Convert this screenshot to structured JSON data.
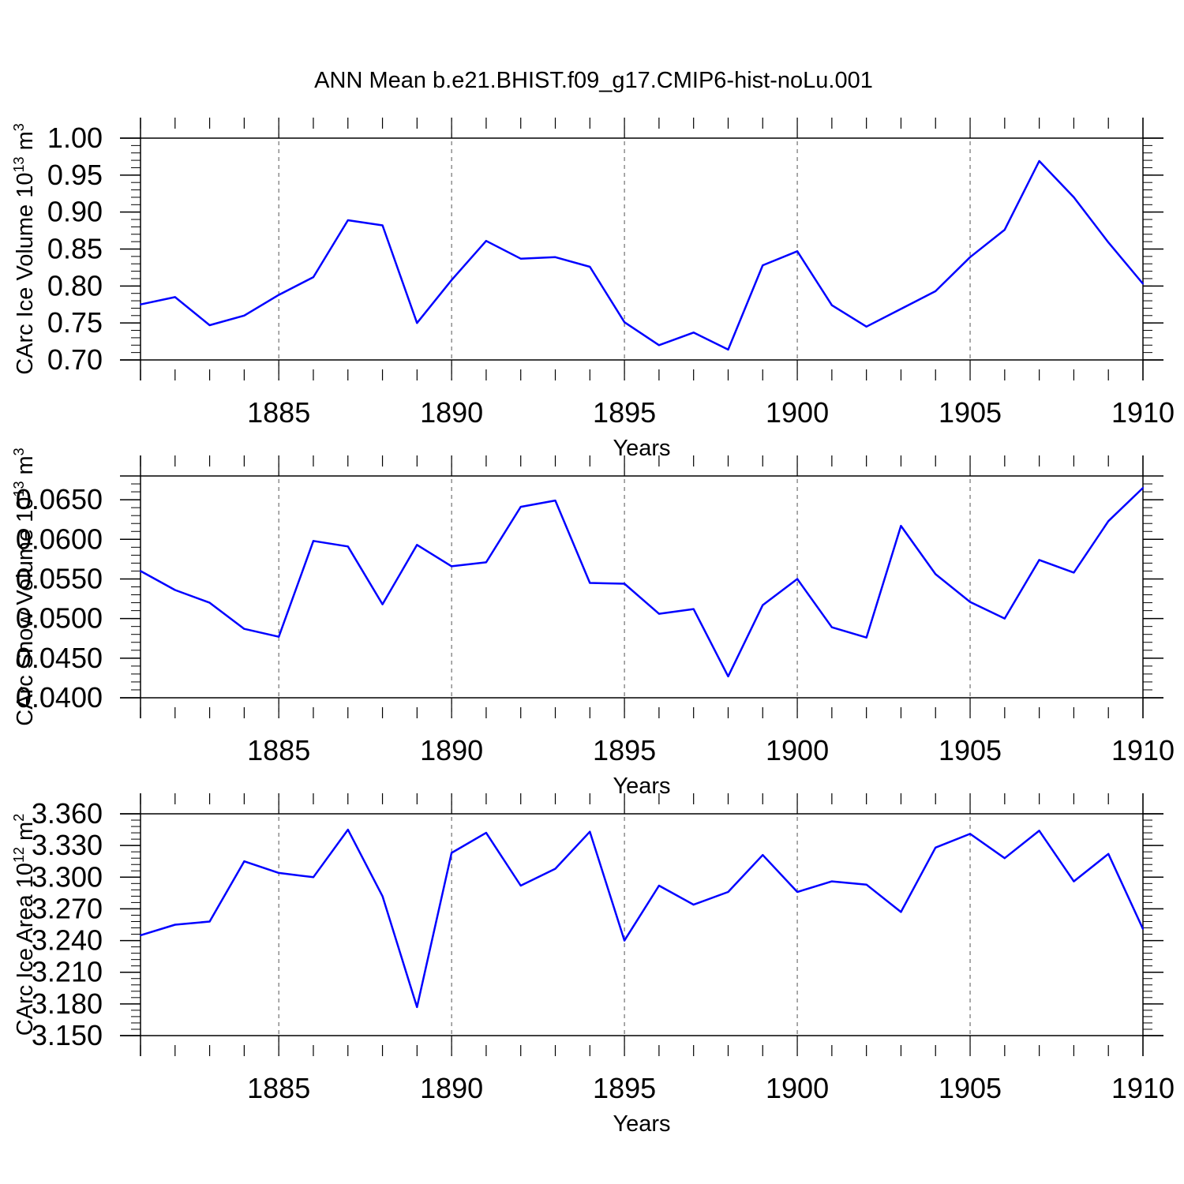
{
  "title": "ANN Mean b.e21.BHIST.f09_g17.CMIP6-hist-noLu.001",
  "line_color": "#0000ff",
  "chart_data": [
    {
      "type": "line",
      "name": "ice-volume",
      "ylabel": "CArc Ice Volume",
      "ylabel_base": "10",
      "ylabel_exp": "13",
      "ylabel_unit": "m",
      "ylabel_unit_exp": "3",
      "xlabel": "Years",
      "xlim": [
        1881,
        1910
      ],
      "ylim": [
        0.7,
        1.0
      ],
      "grid": "vertical-dashed",
      "x_ticks": [
        1885,
        1890,
        1895,
        1900,
        1905,
        1910
      ],
      "x_tick_labels": [
        "1885",
        "1890",
        "1895",
        "1900",
        "1905",
        "1910"
      ],
      "y_ticks": [
        0.7,
        0.75,
        0.8,
        0.85,
        0.9,
        0.95,
        1.0
      ],
      "y_tick_labels": [
        "0.70",
        "0.75",
        "0.80",
        "0.85",
        "0.90",
        "0.95",
        "1.00"
      ],
      "y_minor_step": 0.01,
      "x": [
        1881,
        1882,
        1883,
        1884,
        1885,
        1886,
        1887,
        1888,
        1889,
        1890,
        1891,
        1892,
        1893,
        1894,
        1895,
        1896,
        1897,
        1898,
        1899,
        1900,
        1901,
        1902,
        1903,
        1904,
        1905,
        1906,
        1907,
        1908,
        1909,
        1910
      ],
      "values": [
        0.775,
        0.785,
        0.747,
        0.76,
        0.788,
        0.812,
        0.889,
        0.882,
        0.75,
        0.808,
        0.861,
        0.837,
        0.839,
        0.826,
        0.751,
        0.72,
        0.737,
        0.714,
        0.828,
        0.847,
        0.774,
        0.745,
        0.769,
        0.793,
        0.839,
        0.876,
        0.969,
        0.92,
        0.859,
        0.803
      ]
    },
    {
      "type": "line",
      "name": "snow-volume",
      "ylabel": "CArc Snow Volume",
      "ylabel_base": "10",
      "ylabel_exp": "13",
      "ylabel_unit": "m",
      "ylabel_unit_exp": "3",
      "xlabel": "Years",
      "xlim": [
        1881,
        1910
      ],
      "ylim": [
        0.04,
        0.068
      ],
      "grid": "vertical-dashed",
      "x_ticks": [
        1885,
        1890,
        1895,
        1900,
        1905,
        1910
      ],
      "x_tick_labels": [
        "1885",
        "1890",
        "1895",
        "1900",
        "1905",
        "1910"
      ],
      "y_ticks": [
        0.04,
        0.045,
        0.05,
        0.055,
        0.06,
        0.065
      ],
      "y_tick_labels": [
        "0.0400",
        "0.0450",
        "0.0500",
        "0.0550",
        "0.0600",
        "0.0650"
      ],
      "y_minor_step": 0.001,
      "x": [
        1881,
        1882,
        1883,
        1884,
        1885,
        1886,
        1887,
        1888,
        1889,
        1890,
        1891,
        1892,
        1893,
        1894,
        1895,
        1896,
        1897,
        1898,
        1899,
        1900,
        1901,
        1902,
        1903,
        1904,
        1905,
        1906,
        1907,
        1908,
        1909,
        1910
      ],
      "values": [
        0.056,
        0.0536,
        0.052,
        0.0487,
        0.0477,
        0.0598,
        0.0591,
        0.0518,
        0.0593,
        0.0566,
        0.0571,
        0.0641,
        0.0649,
        0.0545,
        0.0544,
        0.0506,
        0.0512,
        0.0427,
        0.0517,
        0.055,
        0.0489,
        0.0476,
        0.0617,
        0.0556,
        0.0521,
        0.05,
        0.0574,
        0.0558,
        0.0623,
        0.0665
      ]
    },
    {
      "type": "line",
      "name": "ice-area",
      "ylabel": "CArc Ice Area",
      "ylabel_base": "10",
      "ylabel_exp": "12",
      "ylabel_unit": "m",
      "ylabel_unit_exp": "2",
      "xlabel": "Years",
      "xlim": [
        1881,
        1910
      ],
      "ylim": [
        3.15,
        3.36
      ],
      "grid": "vertical-dashed",
      "x_ticks": [
        1885,
        1890,
        1895,
        1900,
        1905,
        1910
      ],
      "x_tick_labels": [
        "1885",
        "1890",
        "1895",
        "1900",
        "1905",
        "1910"
      ],
      "y_ticks": [
        3.15,
        3.18,
        3.21,
        3.24,
        3.27,
        3.3,
        3.33,
        3.36
      ],
      "y_tick_labels": [
        "3.150",
        "3.180",
        "3.210",
        "3.240",
        "3.270",
        "3.300",
        "3.330",
        "3.360"
      ],
      "y_minor_step": 0.006,
      "x": [
        1881,
        1882,
        1883,
        1884,
        1885,
        1886,
        1887,
        1888,
        1889,
        1890,
        1891,
        1892,
        1893,
        1894,
        1895,
        1896,
        1897,
        1898,
        1899,
        1900,
        1901,
        1902,
        1903,
        1904,
        1905,
        1906,
        1907,
        1908,
        1909,
        1910
      ],
      "values": [
        3.245,
        3.255,
        3.258,
        3.315,
        3.304,
        3.3,
        3.345,
        3.282,
        3.177,
        3.323,
        3.342,
        3.292,
        3.308,
        3.343,
        3.24,
        3.292,
        3.274,
        3.286,
        3.321,
        3.286,
        3.296,
        3.293,
        3.267,
        3.328,
        3.341,
        3.318,
        3.344,
        3.296,
        3.322,
        3.251
      ]
    }
  ]
}
